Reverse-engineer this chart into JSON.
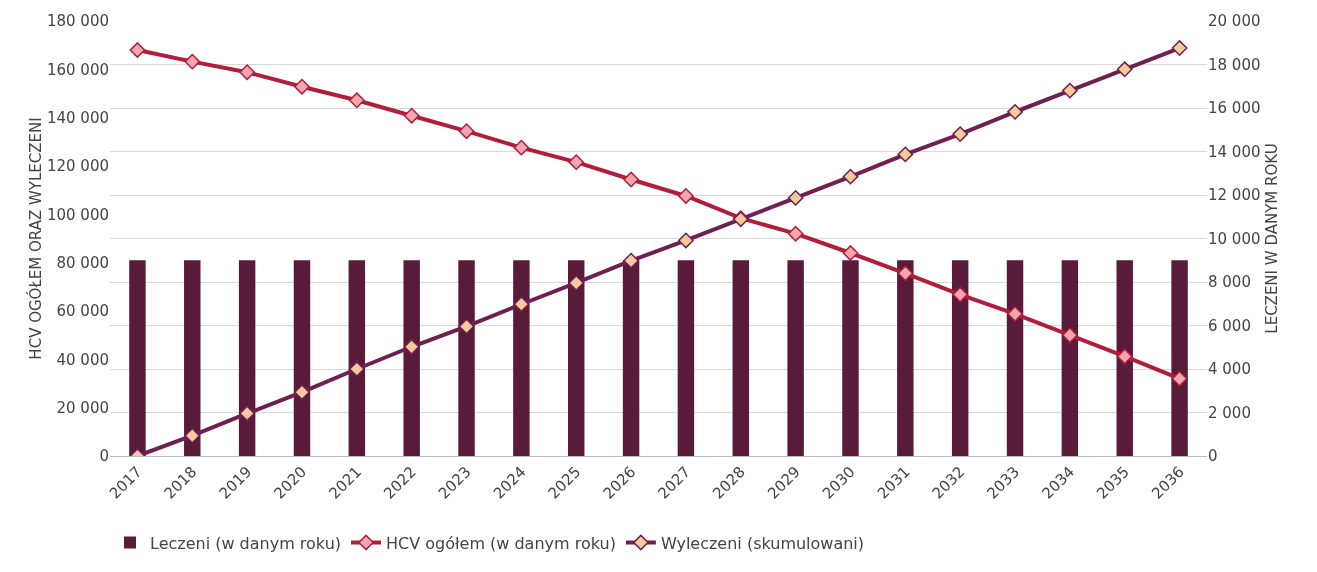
{
  "chart_data": {
    "type": "bar",
    "categories": [
      "2017",
      "2018",
      "2019",
      "2020",
      "2021",
      "2022",
      "2023",
      "2024",
      "2025",
      "2026",
      "2027",
      "2028",
      "2029",
      "2030",
      "2031",
      "2032",
      "2033",
      "2034",
      "2035",
      "2036"
    ],
    "ylabel": "HCV OGÓŁEM ORAZ WYLECZENI",
    "y2label": "LECZENI W DANYM ROKU",
    "series": [
      {
        "name": "Leczeni (w danym roku)",
        "axis": "y2",
        "color": "#5a1a3a",
        "values": [
          9000,
          9000,
          9000,
          9000,
          9000,
          9000,
          9000,
          9000,
          9000,
          9000,
          9000,
          9000,
          9000,
          9000,
          9000,
          9000,
          9000,
          9000,
          9000,
          9000
        ]
      },
      {
        "name": "HCV ogółem (w danym roku)",
        "type": "line",
        "color": "#b01e3c",
        "values": [
          168000,
          163200,
          158800,
          152800,
          147200,
          140800,
          134400,
          127600,
          121600,
          114400,
          107600,
          98400,
          92000,
          84000,
          75600,
          66800,
          58800,
          50000,
          41200,
          32000
        ]
      },
      {
        "name": "Wyleczeni (skumulowani)",
        "type": "line",
        "color": "#6e2150",
        "values": [
          0,
          8400,
          17600,
          26400,
          36000,
          45200,
          53600,
          62800,
          71600,
          80800,
          89200,
          98000,
          106800,
          115600,
          124800,
          133200,
          142400,
          151200,
          160000,
          168800
        ]
      }
    ],
    "ylim": [
      0,
      180000
    ],
    "yticks": [
      {
        "value": 0,
        "label": "0"
      },
      {
        "value": 20000,
        "label": "20 000"
      },
      {
        "value": 40000,
        "label": "40 000"
      },
      {
        "value": 60000,
        "label": "60 000"
      },
      {
        "value": 80000,
        "label": "80 000"
      },
      {
        "value": 100000,
        "label": "100 000"
      },
      {
        "value": 120000,
        "label": "120 000"
      },
      {
        "value": 140000,
        "label": "140 000"
      },
      {
        "value": 160000,
        "label": "160 000"
      },
      {
        "value": 180000,
        "label": "180 000"
      }
    ],
    "y2lim": [
      0,
      20000
    ],
    "y2ticks": [
      {
        "value": 0,
        "label": "0"
      },
      {
        "value": 2000,
        "label": "2 000"
      },
      {
        "value": 4000,
        "label": "4 000"
      },
      {
        "value": 6000,
        "label": "6 000"
      },
      {
        "value": 8000,
        "label": "8 000"
      },
      {
        "value": 10000,
        "label": "10 000"
      },
      {
        "value": 12000,
        "label": "12 000"
      },
      {
        "value": 14000,
        "label": "14 000"
      },
      {
        "value": 16000,
        "label": "16 000"
      },
      {
        "value": 18000,
        "label": "18 000"
      },
      {
        "value": 20000,
        "label": "20 000"
      }
    ],
    "grid": "y",
    "legend": "bottom",
    "marker": "diamond",
    "line_style": "solid"
  }
}
